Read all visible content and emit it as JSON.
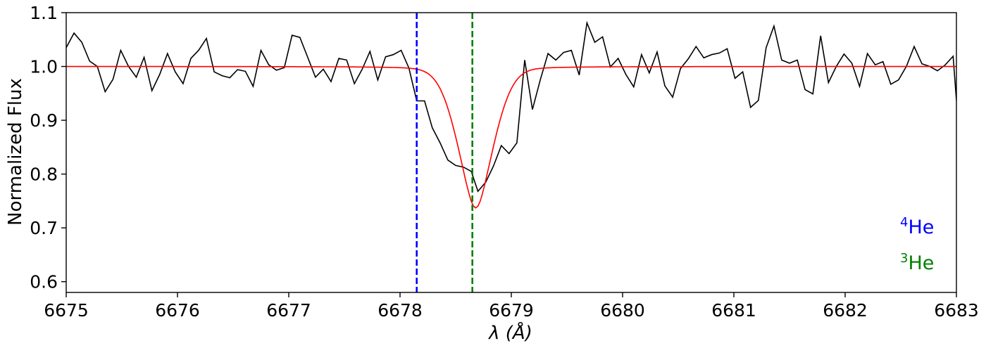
{
  "chart_data": {
    "type": "line",
    "xlabel": "λ (Å)",
    "ylabel": "Normalized Flux",
    "xlim": [
      6675,
      6683
    ],
    "ylim": [
      0.58,
      1.1
    ],
    "x_ticks": [
      "6675",
      "6676",
      "6677",
      "6678",
      "6679",
      "6680",
      "6681",
      "6682",
      "6683"
    ],
    "y_ticks": [
      "0.6",
      "0.7",
      "0.8",
      "0.9",
      "1.0",
      "1.1"
    ],
    "grid": false,
    "series": [
      {
        "style": "observed",
        "color": "#000000",
        "x": [
          6675.0,
          6675.07,
          6675.14,
          6675.21,
          6675.28,
          6675.35,
          6675.42,
          6675.49,
          6675.56,
          6675.63,
          6675.7,
          6675.77,
          6675.84,
          6675.91,
          6675.98,
          6676.05,
          6676.12,
          6676.19,
          6676.26,
          6676.33,
          6676.4,
          6676.47,
          6676.54,
          6676.61,
          6676.68,
          6676.75,
          6676.82,
          6676.89,
          6676.96,
          6677.03,
          6677.1,
          6677.17,
          6677.24,
          6677.31,
          6677.38,
          6677.45,
          6677.52,
          6677.59,
          6677.66,
          6677.73,
          6677.8,
          6677.87,
          6677.94,
          6678.01,
          6678.08,
          6678.15,
          6678.22,
          6678.29,
          6678.36,
          6678.43,
          6678.5,
          6678.57,
          6678.64,
          6678.7,
          6678.77,
          6678.84,
          6678.91,
          6678.98,
          6679.05,
          6679.12,
          6679.19,
          6679.26,
          6679.33,
          6679.4,
          6679.47,
          6679.54,
          6679.61,
          6679.68,
          6679.75,
          6679.82,
          6679.89,
          6679.96,
          6680.03,
          6680.1,
          6680.17,
          6680.24,
          6680.31,
          6680.38,
          6680.45,
          6680.52,
          6680.59,
          6680.66,
          6680.73,
          6680.8,
          6680.87,
          6680.94,
          6681.01,
          6681.08,
          6681.15,
          6681.22,
          6681.29,
          6681.36,
          6681.43,
          6681.5,
          6681.57,
          6681.64,
          6681.71,
          6681.78,
          6681.85,
          6681.92,
          6681.99,
          6682.06,
          6682.13,
          6682.2,
          6682.27,
          6682.34,
          6682.41,
          6682.48,
          6682.55,
          6682.62,
          6682.69,
          6682.76,
          6682.83,
          6682.9,
          6682.97,
          6683.0
        ],
        "y": [
          1.035,
          1.062,
          1.045,
          1.01,
          1.0,
          0.953,
          0.976,
          1.03,
          1.0,
          0.98,
          1.017,
          0.955,
          0.985,
          1.024,
          0.99,
          0.968,
          1.015,
          1.03,
          1.052,
          0.99,
          0.983,
          0.979,
          0.994,
          0.991,
          0.963,
          1.03,
          1.003,
          0.993,
          0.998,
          1.058,
          1.054,
          1.017,
          0.98,
          0.995,
          0.972,
          1.015,
          1.012,
          0.968,
          0.995,
          1.028,
          0.975,
          1.018,
          1.022,
          1.03,
          0.997,
          0.936,
          0.936,
          0.886,
          0.858,
          0.826,
          0.816,
          0.813,
          0.805,
          0.768,
          0.785,
          0.815,
          0.853,
          0.838,
          0.858,
          1.012,
          0.92,
          0.975,
          1.024,
          1.012,
          1.026,
          1.03,
          0.984,
          1.081,
          1.045,
          1.055,
          0.999,
          1.015,
          0.985,
          0.962,
          1.022,
          0.988,
          1.027,
          0.964,
          0.943,
          0.996,
          1.014,
          1.037,
          1.016,
          1.022,
          1.025,
          1.033,
          0.978,
          0.99,
          0.924,
          0.937,
          1.035,
          1.075,
          1.012,
          1.006,
          1.012,
          0.957,
          0.949,
          1.057,
          0.97,
          1.0,
          1.023,
          1.006,
          0.963,
          1.024,
          1.003,
          1.009,
          0.967,
          0.975,
          1.0,
          1.037,
          1.005,
          1.0,
          0.992,
          1.003,
          1.019,
          0.937
        ]
      },
      {
        "style": "model",
        "color": "#ff0000",
        "center": 6678.68,
        "depth": 0.263,
        "sigma": 0.17,
        "gamma": 0.12,
        "continuum": 1.0
      }
    ],
    "vlines": [
      {
        "x": 6678.15,
        "color": "#0000ff",
        "style": "dashed"
      },
      {
        "x": 6678.65,
        "color": "#008000",
        "style": "dashed"
      }
    ],
    "annotations": [
      {
        "sup": "4",
        "text": "He",
        "color": "#0000ff"
      },
      {
        "sup": "3",
        "text": "He",
        "color": "#008000"
      }
    ]
  }
}
